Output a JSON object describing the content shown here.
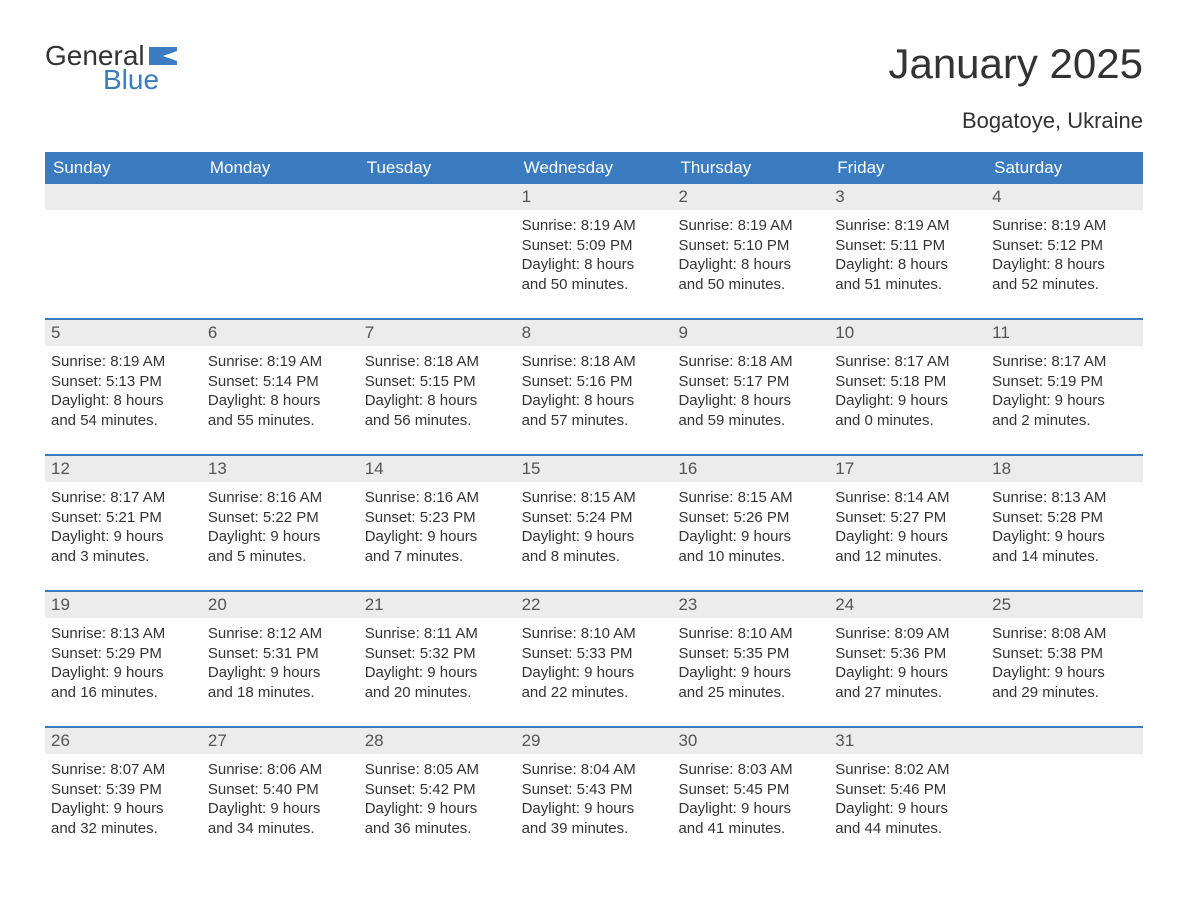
{
  "logo": {
    "general": "General",
    "blue": "Blue",
    "flag_color": "#3b7bbf"
  },
  "title": "January 2025",
  "location": "Bogatoye, Ukraine",
  "colors": {
    "header_bg": "#3b7bbf",
    "header_text": "#ffffff",
    "daynum_bg": "#ececec",
    "text": "#333333",
    "week_border": "#3b7bbf",
    "page_bg": "#ffffff"
  },
  "fonts": {
    "title_size_pt": 32,
    "location_size_pt": 17,
    "weekday_size_pt": 13,
    "daynum_size_pt": 13,
    "body_size_pt": 11
  },
  "weekdays": [
    "Sunday",
    "Monday",
    "Tuesday",
    "Wednesday",
    "Thursday",
    "Friday",
    "Saturday"
  ],
  "weeks": [
    [
      {
        "day": null
      },
      {
        "day": null
      },
      {
        "day": null
      },
      {
        "day": 1,
        "sunrise": "8:19 AM",
        "sunset": "5:09 PM",
        "daylight_h": 8,
        "daylight_m": 50
      },
      {
        "day": 2,
        "sunrise": "8:19 AM",
        "sunset": "5:10 PM",
        "daylight_h": 8,
        "daylight_m": 50
      },
      {
        "day": 3,
        "sunrise": "8:19 AM",
        "sunset": "5:11 PM",
        "daylight_h": 8,
        "daylight_m": 51
      },
      {
        "day": 4,
        "sunrise": "8:19 AM",
        "sunset": "5:12 PM",
        "daylight_h": 8,
        "daylight_m": 52
      }
    ],
    [
      {
        "day": 5,
        "sunrise": "8:19 AM",
        "sunset": "5:13 PM",
        "daylight_h": 8,
        "daylight_m": 54
      },
      {
        "day": 6,
        "sunrise": "8:19 AM",
        "sunset": "5:14 PM",
        "daylight_h": 8,
        "daylight_m": 55
      },
      {
        "day": 7,
        "sunrise": "8:18 AM",
        "sunset": "5:15 PM",
        "daylight_h": 8,
        "daylight_m": 56
      },
      {
        "day": 8,
        "sunrise": "8:18 AM",
        "sunset": "5:16 PM",
        "daylight_h": 8,
        "daylight_m": 57
      },
      {
        "day": 9,
        "sunrise": "8:18 AM",
        "sunset": "5:17 PM",
        "daylight_h": 8,
        "daylight_m": 59
      },
      {
        "day": 10,
        "sunrise": "8:17 AM",
        "sunset": "5:18 PM",
        "daylight_h": 9,
        "daylight_m": 0
      },
      {
        "day": 11,
        "sunrise": "8:17 AM",
        "sunset": "5:19 PM",
        "daylight_h": 9,
        "daylight_m": 2
      }
    ],
    [
      {
        "day": 12,
        "sunrise": "8:17 AM",
        "sunset": "5:21 PM",
        "daylight_h": 9,
        "daylight_m": 3
      },
      {
        "day": 13,
        "sunrise": "8:16 AM",
        "sunset": "5:22 PM",
        "daylight_h": 9,
        "daylight_m": 5
      },
      {
        "day": 14,
        "sunrise": "8:16 AM",
        "sunset": "5:23 PM",
        "daylight_h": 9,
        "daylight_m": 7
      },
      {
        "day": 15,
        "sunrise": "8:15 AM",
        "sunset": "5:24 PM",
        "daylight_h": 9,
        "daylight_m": 8
      },
      {
        "day": 16,
        "sunrise": "8:15 AM",
        "sunset": "5:26 PM",
        "daylight_h": 9,
        "daylight_m": 10
      },
      {
        "day": 17,
        "sunrise": "8:14 AM",
        "sunset": "5:27 PM",
        "daylight_h": 9,
        "daylight_m": 12
      },
      {
        "day": 18,
        "sunrise": "8:13 AM",
        "sunset": "5:28 PM",
        "daylight_h": 9,
        "daylight_m": 14
      }
    ],
    [
      {
        "day": 19,
        "sunrise": "8:13 AM",
        "sunset": "5:29 PM",
        "daylight_h": 9,
        "daylight_m": 16
      },
      {
        "day": 20,
        "sunrise": "8:12 AM",
        "sunset": "5:31 PM",
        "daylight_h": 9,
        "daylight_m": 18
      },
      {
        "day": 21,
        "sunrise": "8:11 AM",
        "sunset": "5:32 PM",
        "daylight_h": 9,
        "daylight_m": 20
      },
      {
        "day": 22,
        "sunrise": "8:10 AM",
        "sunset": "5:33 PM",
        "daylight_h": 9,
        "daylight_m": 22
      },
      {
        "day": 23,
        "sunrise": "8:10 AM",
        "sunset": "5:35 PM",
        "daylight_h": 9,
        "daylight_m": 25
      },
      {
        "day": 24,
        "sunrise": "8:09 AM",
        "sunset": "5:36 PM",
        "daylight_h": 9,
        "daylight_m": 27
      },
      {
        "day": 25,
        "sunrise": "8:08 AM",
        "sunset": "5:38 PM",
        "daylight_h": 9,
        "daylight_m": 29
      }
    ],
    [
      {
        "day": 26,
        "sunrise": "8:07 AM",
        "sunset": "5:39 PM",
        "daylight_h": 9,
        "daylight_m": 32
      },
      {
        "day": 27,
        "sunrise": "8:06 AM",
        "sunset": "5:40 PM",
        "daylight_h": 9,
        "daylight_m": 34
      },
      {
        "day": 28,
        "sunrise": "8:05 AM",
        "sunset": "5:42 PM",
        "daylight_h": 9,
        "daylight_m": 36
      },
      {
        "day": 29,
        "sunrise": "8:04 AM",
        "sunset": "5:43 PM",
        "daylight_h": 9,
        "daylight_m": 39
      },
      {
        "day": 30,
        "sunrise": "8:03 AM",
        "sunset": "5:45 PM",
        "daylight_h": 9,
        "daylight_m": 41
      },
      {
        "day": 31,
        "sunrise": "8:02 AM",
        "sunset": "5:46 PM",
        "daylight_h": 9,
        "daylight_m": 44
      },
      {
        "day": null
      }
    ]
  ],
  "labels": {
    "sunrise_prefix": "Sunrise: ",
    "sunset_prefix": "Sunset: ",
    "daylight_prefix": "Daylight: ",
    "hours_word": " hours",
    "and_word": "and ",
    "minutes_word": " minutes."
  }
}
